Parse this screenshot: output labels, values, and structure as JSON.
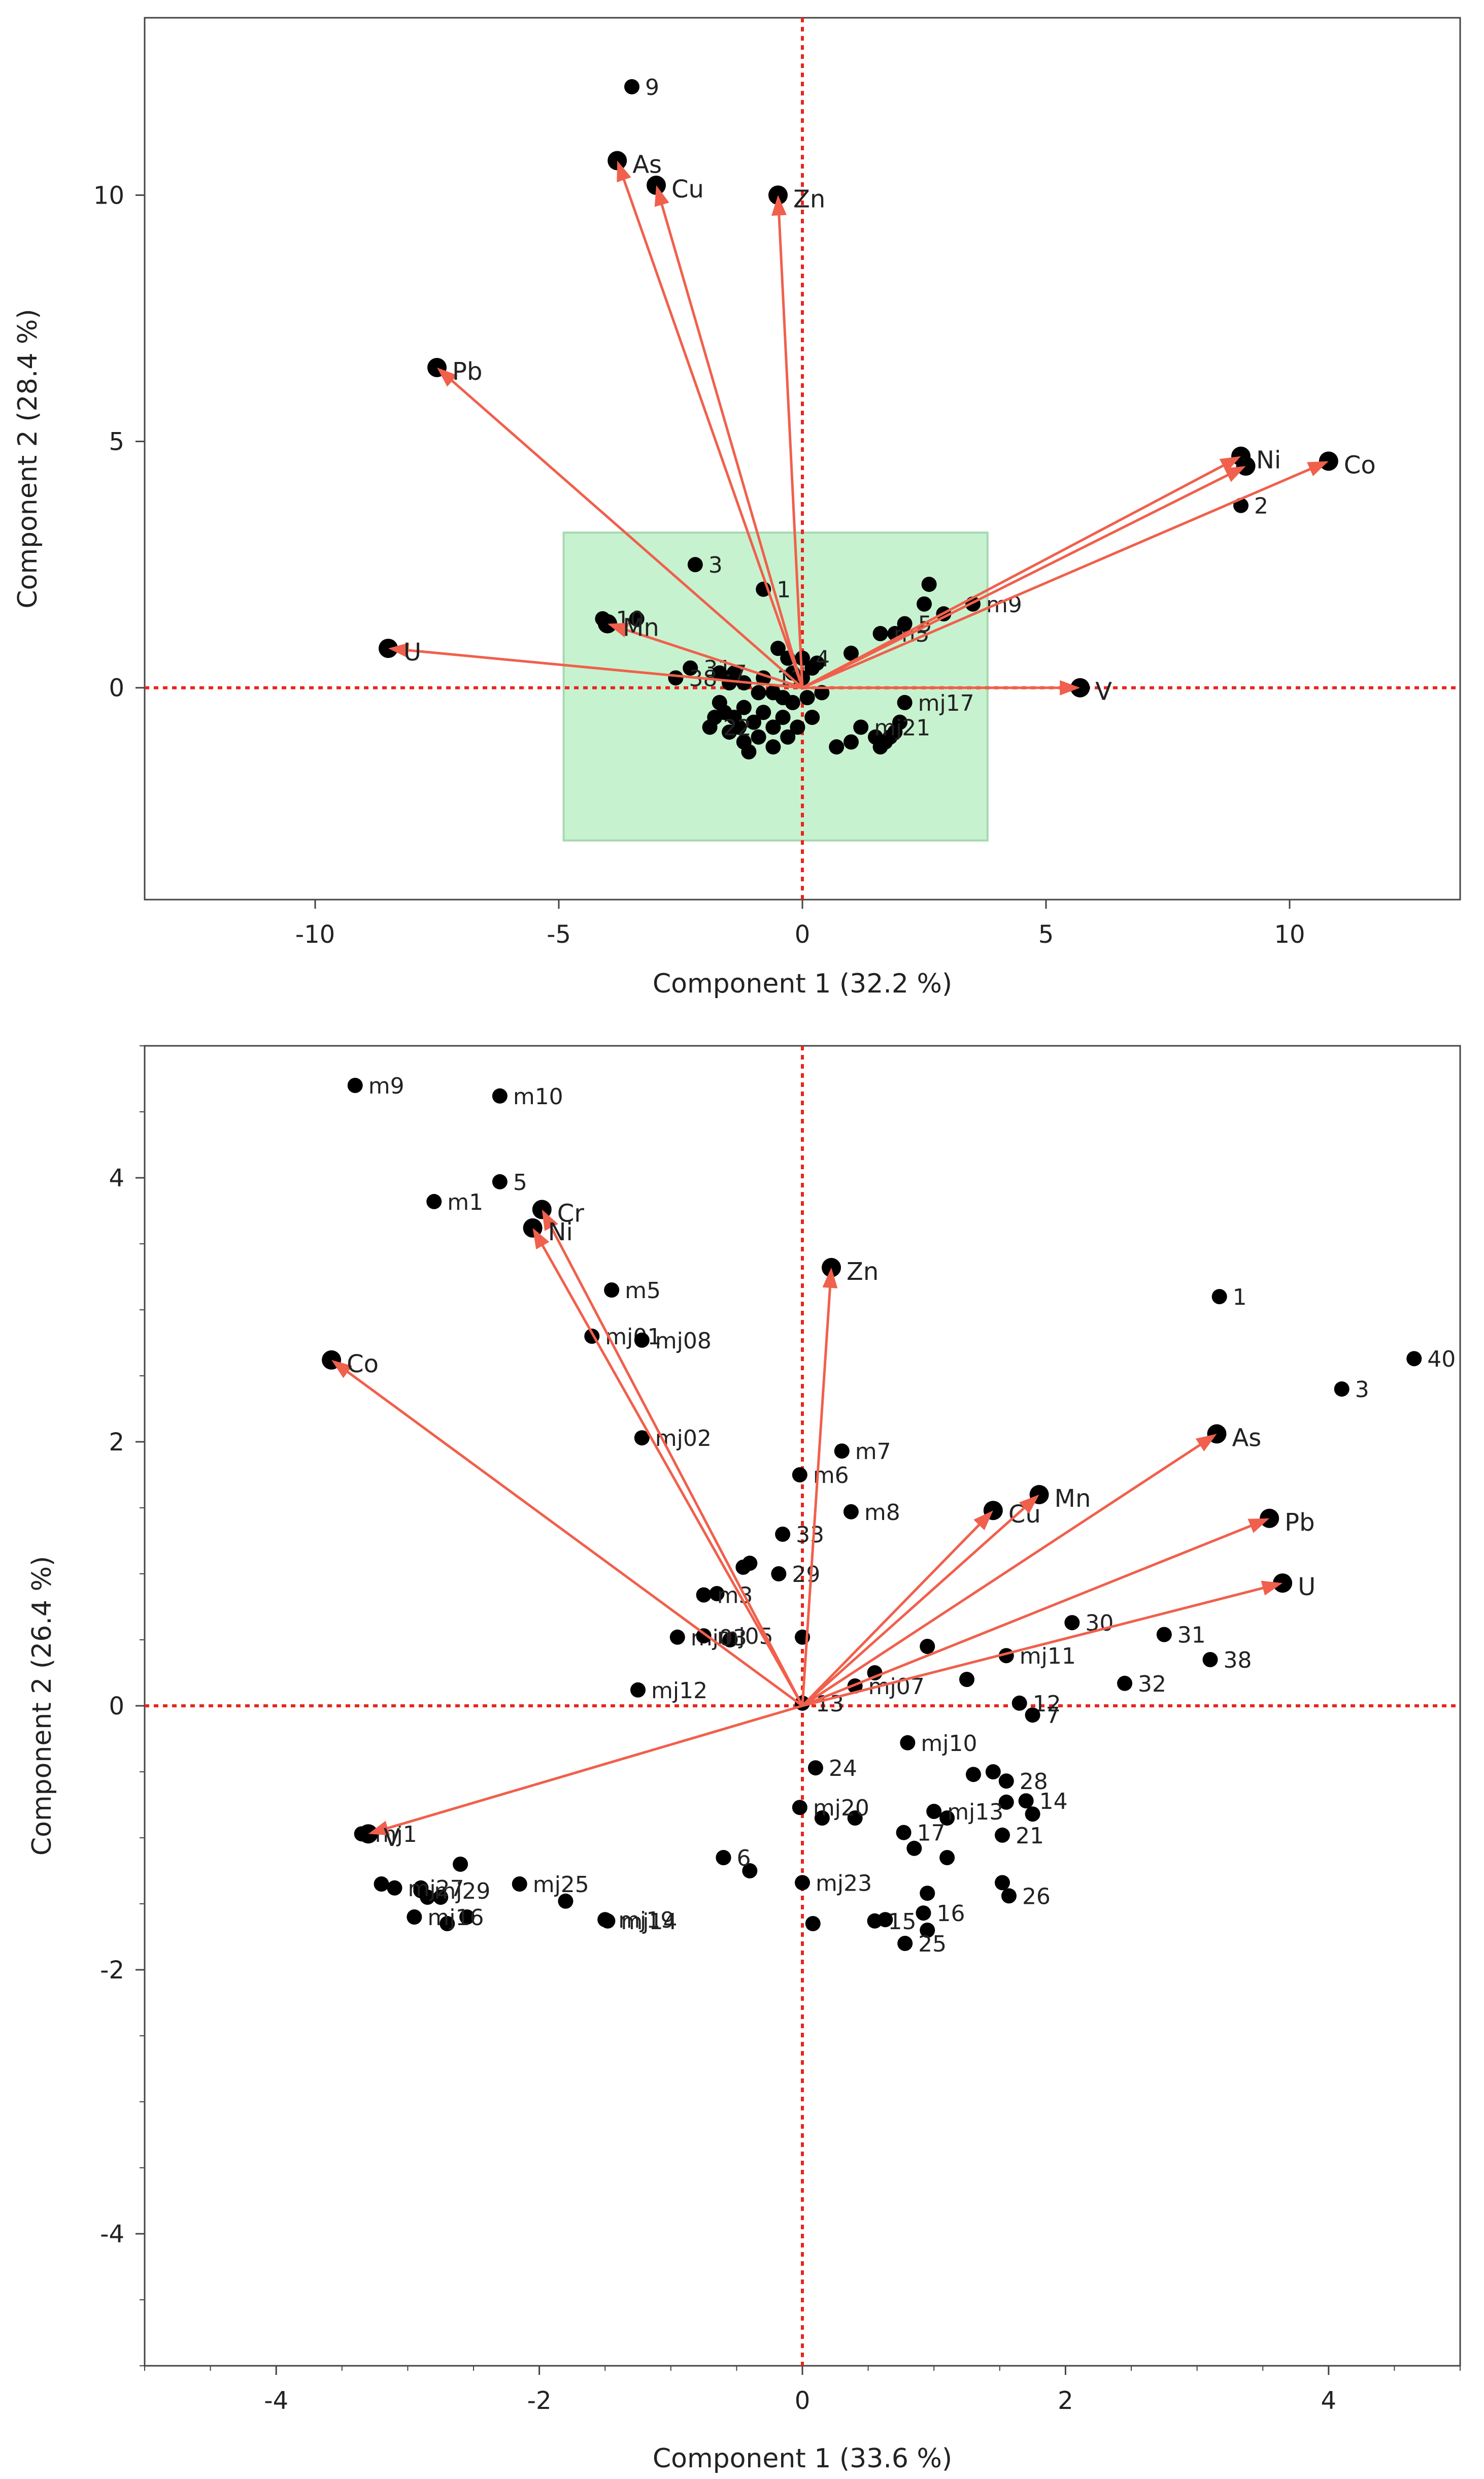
{
  "colors": {
    "arrow": "#f0604c",
    "zero_line": "#e8261c",
    "box_fill": "#c7f2cf",
    "point": "#000000"
  },
  "chart_data": [
    {
      "type": "scatter",
      "subtype": "pca-biplot",
      "title": "",
      "xlabel": "Component 1  (32.2 %)",
      "ylabel": "Component 2  (28.4 %)",
      "xlim": [
        -13.5,
        13.5
      ],
      "ylim": [
        -4.3,
        13.6
      ],
      "xticks": [
        -10,
        -5,
        0,
        5,
        10
      ],
      "yticks": [
        0,
        5,
        10
      ],
      "highlight_box": {
        "x": [
          -4.9,
          3.8
        ],
        "y": [
          -3.1,
          3.15
        ]
      },
      "loadings": [
        {
          "name": "As",
          "x": -3.8,
          "y": 10.7
        },
        {
          "name": "Cu",
          "x": -3.0,
          "y": 10.2
        },
        {
          "name": "Zn",
          "x": -0.5,
          "y": 10.0
        },
        {
          "name": "Pb",
          "x": -7.5,
          "y": 6.5
        },
        {
          "name": "Ni",
          "x": 9.0,
          "y": 4.7
        },
        {
          "name": "Co",
          "x": 10.8,
          "y": 4.6
        },
        {
          "name": "U",
          "x": -8.5,
          "y": 0.8
        },
        {
          "name": "Mn",
          "x": -4.0,
          "y": 1.3
        },
        {
          "name": "V",
          "x": 5.7,
          "y": 0.0
        }
      ],
      "extra_arrow_heads": [
        {
          "x": 9.1,
          "y": 4.5
        }
      ],
      "labeled_scores": [
        {
          "label": "9",
          "x": -3.5,
          "y": 12.2
        },
        {
          "label": "2",
          "x": 9.0,
          "y": 3.7
        },
        {
          "label": "3",
          "x": -2.2,
          "y": 2.5
        },
        {
          "label": "1",
          "x": -0.8,
          "y": 2.0
        },
        {
          "label": "m5",
          "x": 1.6,
          "y": 1.1
        },
        {
          "label": "5",
          "x": 2.1,
          "y": 1.3
        },
        {
          "label": "m9",
          "x": 3.5,
          "y": 1.7
        },
        {
          "label": "4",
          "x": 0.0,
          "y": 0.6
        },
        {
          "label": "10",
          "x": -4.1,
          "y": 1.4
        },
        {
          "label": "31",
          "x": -2.3,
          "y": 0.4
        },
        {
          "label": "7",
          "x": -1.7,
          "y": 0.3
        },
        {
          "label": "12",
          "x": -0.8,
          "y": 0.2
        },
        {
          "label": "38",
          "x": -2.6,
          "y": 0.2
        },
        {
          "label": "22",
          "x": -1.9,
          "y": -0.8
        },
        {
          "label": "mj21",
          "x": 1.2,
          "y": -0.8
        },
        {
          "label": "mj17",
          "x": 2.1,
          "y": -0.3
        }
      ],
      "unlabeled_scores": [
        [
          -3.4,
          1.4
        ],
        [
          2.6,
          2.1
        ],
        [
          2.5,
          1.7
        ],
        [
          2.9,
          1.5
        ],
        [
          1.9,
          1.1
        ],
        [
          1.0,
          0.7
        ],
        [
          0.3,
          0.5
        ],
        [
          0.2,
          0.4
        ],
        [
          0.0,
          0.2
        ],
        [
          -0.2,
          0.3
        ],
        [
          -0.5,
          0.8
        ],
        [
          -0.3,
          0.6
        ],
        [
          -1.4,
          0.3
        ],
        [
          -1.5,
          0.1
        ],
        [
          -1.2,
          0.1
        ],
        [
          -0.9,
          -0.1
        ],
        [
          -0.6,
          -0.1
        ],
        [
          -0.4,
          -0.2
        ],
        [
          -0.2,
          -0.3
        ],
        [
          0.1,
          -0.2
        ],
        [
          0.4,
          -0.1
        ],
        [
          -1.7,
          -0.3
        ],
        [
          -1.6,
          -0.5
        ],
        [
          -1.4,
          -0.6
        ],
        [
          -1.2,
          -0.4
        ],
        [
          -1.0,
          -0.7
        ],
        [
          -0.8,
          -0.5
        ],
        [
          -0.6,
          -0.8
        ],
        [
          -0.4,
          -0.6
        ],
        [
          -0.1,
          -0.8
        ],
        [
          -1.5,
          -0.9
        ],
        [
          -1.2,
          -1.1
        ],
        [
          -0.9,
          -1.0
        ],
        [
          -0.6,
          -1.2
        ],
        [
          -1.1,
          -1.3
        ],
        [
          -1.8,
          -0.6
        ],
        [
          -1.3,
          -0.8
        ],
        [
          0.2,
          -0.6
        ],
        [
          -0.3,
          -1.0
        ],
        [
          0.7,
          -1.2
        ],
        [
          1.0,
          -1.1
        ],
        [
          1.5,
          -1.0
        ],
        [
          1.7,
          -1.1
        ],
        [
          1.9,
          -0.9
        ],
        [
          2.0,
          -0.7
        ],
        [
          1.6,
          -1.2
        ],
        [
          1.8,
          -1.0
        ]
      ]
    },
    {
      "type": "scatter",
      "subtype": "pca-biplot",
      "title": "",
      "xlabel": "Component 1  (33.6 %)",
      "ylabel": "Component 2  (26.4 %)",
      "xlim": [
        -5.0,
        5.0
      ],
      "ylim": [
        -5.0,
        5.0
      ],
      "xticks": [
        -4,
        -2,
        0,
        2,
        4
      ],
      "yticks": [
        -4,
        -2,
        0,
        2,
        4
      ],
      "loadings": [
        {
          "name": "Cr",
          "x": -1.98,
          "y": 3.76
        },
        {
          "name": "Ni",
          "x": -2.05,
          "y": 3.62
        },
        {
          "name": "Co",
          "x": -3.58,
          "y": 2.62
        },
        {
          "name": "Zn",
          "x": 0.22,
          "y": 3.32
        },
        {
          "name": "As",
          "x": 3.15,
          "y": 2.06
        },
        {
          "name": "Pb",
          "x": 3.55,
          "y": 1.42
        },
        {
          "name": "U",
          "x": 3.65,
          "y": 0.93
        },
        {
          "name": "Cu",
          "x": 1.45,
          "y": 1.48
        },
        {
          "name": "Mn",
          "x": 1.8,
          "y": 1.6
        },
        {
          "name": "V",
          "x": -3.3,
          "y": -0.97
        }
      ],
      "extra_arrow_heads": [],
      "labeled_scores": [
        {
          "label": "m9",
          "x": -3.4,
          "y": 4.7
        },
        {
          "label": "m10",
          "x": -2.3,
          "y": 4.62
        },
        {
          "label": "5",
          "x": -2.3,
          "y": 3.97
        },
        {
          "label": "m1",
          "x": -2.8,
          "y": 3.82
        },
        {
          "label": "m5",
          "x": -1.45,
          "y": 3.15
        },
        {
          "label": "mj01",
          "x": -1.6,
          "y": 2.8
        },
        {
          "label": "mj08",
          "x": -1.22,
          "y": 2.77
        },
        {
          "label": "mj02",
          "x": -1.22,
          "y": 2.03
        },
        {
          "label": "m6",
          "x": -0.02,
          "y": 1.75
        },
        {
          "label": "m7",
          "x": 0.3,
          "y": 1.93
        },
        {
          "label": "m8",
          "x": 0.37,
          "y": 1.47
        },
        {
          "label": "33",
          "x": -0.15,
          "y": 1.3
        },
        {
          "label": "29",
          "x": -0.18,
          "y": 1.0
        },
        {
          "label": "m3",
          "x": -0.75,
          "y": 0.84
        },
        {
          "label": "mj03",
          "x": -0.95,
          "y": 0.52
        },
        {
          "label": "mj05",
          "x": -0.75,
          "y": 0.53
        },
        {
          "label": "mj07",
          "x": 0.4,
          "y": 0.15
        },
        {
          "label": "mj12",
          "x": -1.25,
          "y": 0.12
        },
        {
          "label": "13",
          "x": 0.0,
          "y": 0.02
        },
        {
          "label": "1",
          "x": 3.17,
          "y": 3.1
        },
        {
          "label": "3",
          "x": 4.1,
          "y": 2.4
        },
        {
          "label": "40",
          "x": 4.65,
          "y": 2.63
        },
        {
          "label": "30",
          "x": 2.05,
          "y": 0.63
        },
        {
          "label": "31",
          "x": 2.75,
          "y": 0.54
        },
        {
          "label": "38",
          "x": 3.1,
          "y": 0.35
        },
        {
          "label": "32",
          "x": 2.45,
          "y": 0.17
        },
        {
          "label": "mj11",
          "x": 1.55,
          "y": 0.38
        },
        {
          "label": "12",
          "x": 1.65,
          "y": 0.02
        },
        {
          "label": "7",
          "x": 1.75,
          "y": -0.07
        },
        {
          "label": "mj10",
          "x": 0.8,
          "y": -0.28
        },
        {
          "label": "24",
          "x": 0.1,
          "y": -0.47
        },
        {
          "label": "28",
          "x": 1.55,
          "y": -0.57
        },
        {
          "label": "14",
          "x": 1.7,
          "y": -0.72
        },
        {
          "label": "mj13",
          "x": 1.0,
          "y": -0.8
        },
        {
          "label": "mj20",
          "x": -0.02,
          "y": -0.77
        },
        {
          "label": "17",
          "x": 0.77,
          "y": -0.96
        },
        {
          "label": "21",
          "x": 1.52,
          "y": -0.98
        },
        {
          "label": "6",
          "x": -0.6,
          "y": -1.15
        },
        {
          "label": "26",
          "x": 1.57,
          "y": -1.44
        },
        {
          "label": "mj23",
          "x": 0.0,
          "y": -1.34
        },
        {
          "label": "15",
          "x": 0.55,
          "y": -1.63
        },
        {
          "label": "16",
          "x": 0.92,
          "y": -1.57
        },
        {
          "label": "25",
          "x": 0.78,
          "y": -1.8
        },
        {
          "label": "mj1",
          "x": -3.35,
          "y": -0.97
        },
        {
          "label": "mj29",
          "x": -2.9,
          "y": -1.4
        },
        {
          "label": "mj27",
          "x": -3.1,
          "y": -1.38
        },
        {
          "label": "mj25",
          "x": -2.15,
          "y": -1.35
        },
        {
          "label": "mj19",
          "x": -1.5,
          "y": -1.62
        },
        {
          "label": "mj16",
          "x": -2.95,
          "y": -1.6
        },
        {
          "label": "mj14",
          "x": -1.48,
          "y": -1.63
        }
      ],
      "unlabeled_scores": [
        [
          -0.45,
          1.05
        ],
        [
          -0.4,
          1.08
        ],
        [
          -0.65,
          0.85
        ],
        [
          -0.55,
          0.5
        ],
        [
          0.0,
          0.52
        ],
        [
          0.55,
          0.25
        ],
        [
          0.95,
          0.45
        ],
        [
          1.25,
          0.2
        ],
        [
          1.3,
          -0.52
        ],
        [
          1.55,
          -0.73
        ],
        [
          1.45,
          -0.5
        ],
        [
          1.75,
          -0.82
        ],
        [
          1.1,
          -0.85
        ],
        [
          0.4,
          -0.85
        ],
        [
          0.15,
          -0.85
        ],
        [
          1.1,
          -1.15
        ],
        [
          0.85,
          -1.08
        ],
        [
          0.95,
          -1.42
        ],
        [
          0.95,
          -1.7
        ],
        [
          0.63,
          -1.62
        ],
        [
          0.08,
          -1.65
        ],
        [
          1.52,
          -1.34
        ],
        [
          -0.4,
          -1.25
        ],
        [
          -0.6,
          -1.15
        ],
        [
          -3.2,
          -1.35
        ],
        [
          -2.6,
          -1.2
        ],
        [
          -2.75,
          -1.45
        ],
        [
          -2.55,
          -1.6
        ],
        [
          -2.7,
          -1.65
        ],
        [
          -1.8,
          -1.48
        ],
        [
          -2.9,
          -1.38
        ],
        [
          -2.85,
          -1.45
        ]
      ]
    }
  ]
}
